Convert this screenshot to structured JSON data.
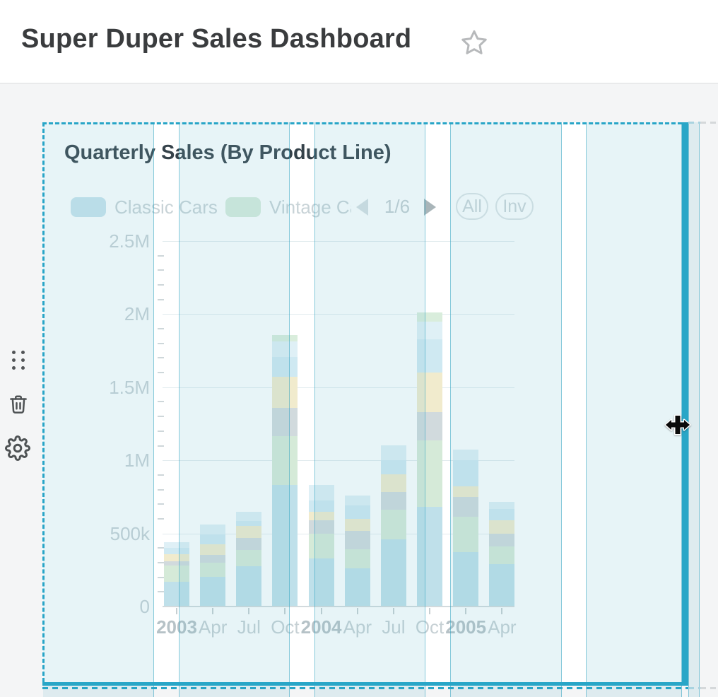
{
  "header": {
    "title": "Super Duper Sales Dashboard"
  },
  "panel": {
    "title": "Quarterly Sales (By Product Line)",
    "legend": {
      "items": [
        {
          "label": "Classic Cars",
          "display": "Classic Cars",
          "swatch_color": "#c9e4ed"
        },
        {
          "label": "Vintage Cars",
          "display": "Vintage Ca",
          "swatch_color": "#d8ecdc"
        }
      ],
      "pager": {
        "display": "1/6",
        "current_page": 1,
        "total_pages": 6
      },
      "buttons": [
        {
          "label": "All"
        },
        {
          "label": "Inv"
        }
      ]
    }
  },
  "chart_data": {
    "type": "bar",
    "stacked": true,
    "title": "Quarterly Sales (By Product Line)",
    "categories": [
      "2003",
      "Apr",
      "Jul",
      "Oct",
      "2004",
      "Apr",
      "Jul",
      "Oct",
      "2005",
      "Apr"
    ],
    "series": [
      {
        "name": "Classic Cars",
        "color": "#bfe0ea",
        "values": [
          169000,
          203000,
          275000,
          831000,
          329000,
          261000,
          459000,
          681000,
          372000,
          290000
        ]
      },
      {
        "name": "Vintage Cars",
        "color": "#d5ead8",
        "values": [
          111000,
          97000,
          111000,
          333000,
          169000,
          130000,
          203000,
          454000,
          242000,
          121000
        ]
      },
      {
        "name": "",
        "color": "#d1dadd",
        "values": [
          29000,
          53000,
          82000,
          193000,
          92000,
          126000,
          121000,
          193000,
          135000,
          87000
        ]
      },
      {
        "name": "",
        "color": "#f1ebcd",
        "values": [
          48000,
          72000,
          82000,
          213000,
          58000,
          82000,
          121000,
          271000,
          72000,
          92000
        ]
      },
      {
        "name": "",
        "color": "#cfe9f2",
        "values": [
          43000,
          68000,
          34000,
          135000,
          77000,
          92000,
          97000,
          227000,
          179000,
          77000
        ]
      },
      {
        "name": "",
        "color": "#dff0f6",
        "values": [
          39000,
          68000,
          63000,
          107000,
          106000,
          68000,
          101000,
          121000,
          72000,
          48000
        ]
      },
      {
        "name": "",
        "color": "#d9eddc",
        "values": [
          0,
          0,
          0,
          43000,
          0,
          0,
          0,
          63000,
          0,
          0
        ]
      }
    ],
    "values_estimated": true,
    "ylim": [
      0,
      2500000
    ],
    "ytick_labels": [
      "0",
      "500k",
      "1M",
      "1.5M",
      "2M",
      "2.5M"
    ],
    "xlabel": "",
    "ylabel": "",
    "grid": "horizontal",
    "legend_position": "top"
  },
  "colors": {
    "selection_accent": "#28a5c7",
    "grid_guide_fill": "rgba(115,188,210,0.17)",
    "grid_guide_line": "rgba(35,158,190,0.5)"
  }
}
